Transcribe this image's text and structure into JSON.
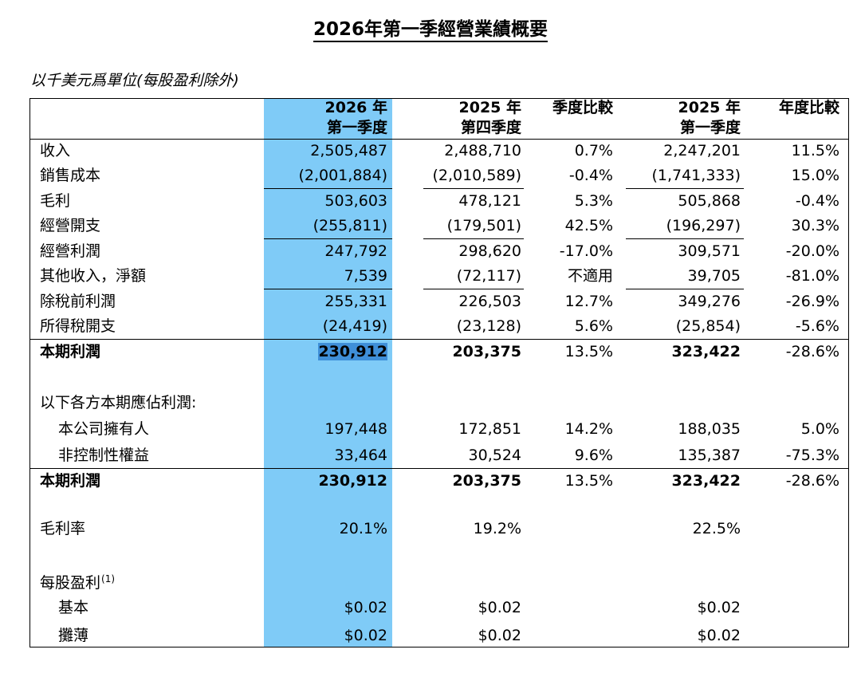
{
  "title": "2026年第一季經營業績概要",
  "unit_note": "以千美元爲單位(每股盈利除外)",
  "headers": {
    "col1_line1": "2026 年",
    "col1_line2": "第一季度",
    "col2_line1": "2025 年",
    "col2_line2": "第四季度",
    "col3": "季度比較",
    "col4_line1": "2025 年",
    "col4_line2": "第一季度",
    "col5": "年度比較"
  },
  "rows": [
    {
      "label": "收入",
      "c1": "2,505,487",
      "c2": "2,488,710",
      "c3": "0.7%",
      "c4": "2,247,201",
      "c5": "11.5%"
    },
    {
      "label": "銷售成本",
      "c1": "(2,001,884)",
      "c2": "(2,010,589)",
      "c3": "-0.4%",
      "c4": "(1,741,333)",
      "c5": "15.0%"
    },
    {
      "label": "毛利",
      "c1": "503,603",
      "c2": "478,121",
      "c3": "5.3%",
      "c4": "505,868",
      "c5": "-0.4%"
    },
    {
      "label": "經營開支",
      "c1": "(255,811)",
      "c2": "(179,501)",
      "c3": "42.5%",
      "c4": "(196,297)",
      "c5": "30.3%"
    },
    {
      "label": "經營利潤",
      "c1": "247,792",
      "c2": "298,620",
      "c3": "-17.0%",
      "c4": "309,571",
      "c5": "-20.0%"
    },
    {
      "label": "其他收入，淨額",
      "c1": "7,539",
      "c2": "(72,117)",
      "c3": "不適用",
      "c4": "39,705",
      "c5": "-81.0%"
    },
    {
      "label": "除稅前利潤",
      "c1": "255,331",
      "c2": "226,503",
      "c3": "12.7%",
      "c4": "349,276",
      "c5": "-26.9%"
    },
    {
      "label": "所得稅開支",
      "c1": "(24,419)",
      "c2": "(23,128)",
      "c3": "5.6%",
      "c4": "(25,854)",
      "c5": "-5.6%"
    },
    {
      "label": "本期利潤",
      "c1": "230,912",
      "c2": "203,375",
      "c3": "13.5%",
      "c4": "323,422",
      "c5": "-28.6%"
    }
  ],
  "attrib_heading": "以下各方本期應佔利潤:",
  "attrib_rows": [
    {
      "label": "本公司擁有人",
      "c1": "197,448",
      "c2": "172,851",
      "c3": "14.2%",
      "c4": "188,035",
      "c5": "5.0%"
    },
    {
      "label": "非控制性權益",
      "c1": "33,464",
      "c2": "30,524",
      "c3": "9.6%",
      "c4": "135,387",
      "c5": "-75.3%"
    }
  ],
  "attrib_total": {
    "label": "本期利潤",
    "c1": "230,912",
    "c2": "203,375",
    "c3": "13.5%",
    "c4": "323,422",
    "c5": "-28.6%"
  },
  "gross_margin": {
    "label": "毛利率",
    "c1": "20.1%",
    "c2": "19.2%",
    "c4": "22.5%"
  },
  "eps": {
    "label": "每股盈利",
    "footnote": "(1)",
    "basic": {
      "label": "基本",
      "c1": "$0.02",
      "c2": "$0.02",
      "c4": "$0.02"
    },
    "diluted": {
      "label": "攤薄",
      "c1": "$0.02",
      "c2": "$0.02",
      "c4": "$0.02"
    }
  },
  "colors": {
    "highlight_column": "#7fcbf7",
    "text_selection": "#3f8fd8"
  }
}
